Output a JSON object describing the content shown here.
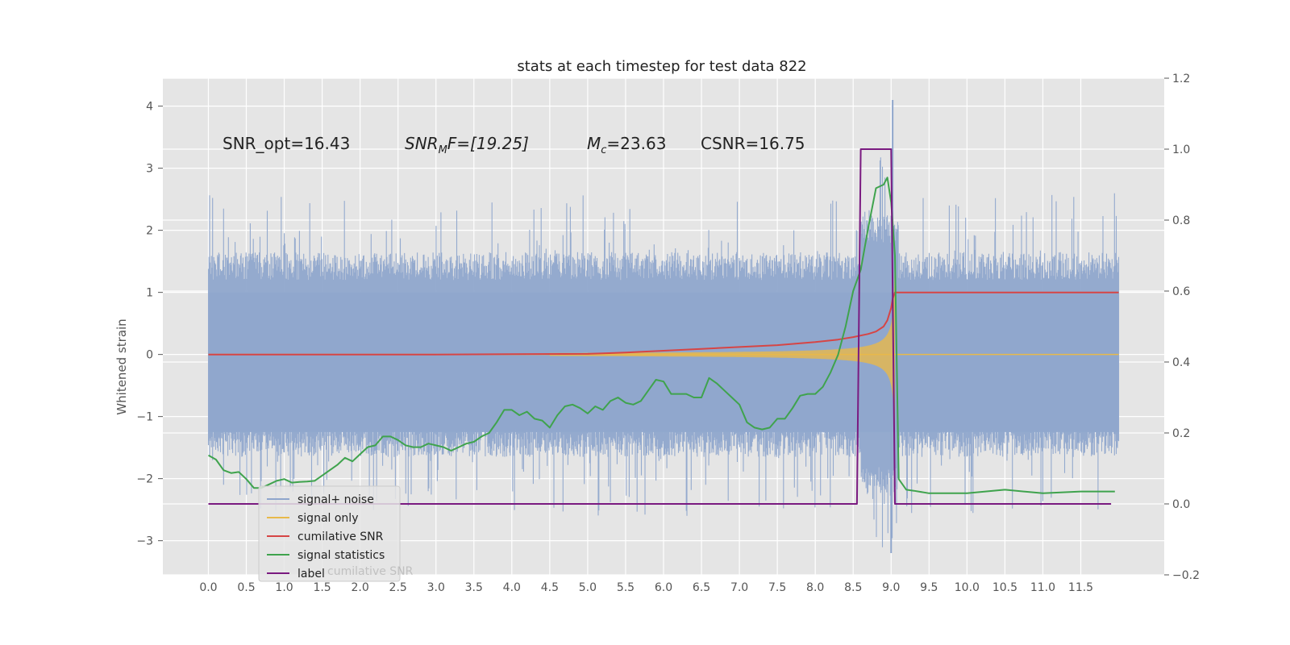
{
  "chart_data": {
    "type": "line",
    "title": "stats at each timestep for test data 822",
    "ylabel": "Whitened strain",
    "xlabel": "",
    "grid": true,
    "legend_position": "bottom-left",
    "xlim": [
      -0.6,
      12.6
    ],
    "ylim": [
      -3.55,
      4.45
    ],
    "y2lim": [
      -0.2,
      1.2
    ],
    "x_ticks": [
      0.0,
      0.5,
      1.0,
      1.5,
      2.0,
      2.5,
      3.0,
      3.5,
      4.0,
      4.5,
      5.0,
      5.5,
      6.0,
      6.5,
      7.0,
      7.5,
      8.0,
      8.5,
      9.0,
      9.5,
      10.0,
      10.5,
      11.0,
      11.5
    ],
    "x_tick_labels": [
      "0.0",
      "0.5",
      "1.0",
      "1.5",
      "2.0",
      "2.5",
      "3.0",
      "3.5",
      "4.0",
      "4.5",
      "5.0",
      "5.5",
      "6.0",
      "6.5",
      "7.0",
      "7.5",
      "8.0",
      "8.5",
      "9.0",
      "9.5",
      "10.0",
      "10.5",
      "11.0",
      "11.5"
    ],
    "y_ticks": [
      -3,
      -2,
      -1,
      0,
      1,
      2,
      3,
      4
    ],
    "y_tick_labels": [
      "−3",
      "−2",
      "−1",
      "0",
      "1",
      "2",
      "3",
      "4"
    ],
    "y2_ticks": [
      -0.2,
      0.0,
      0.2,
      0.4,
      0.6,
      0.8,
      1.0,
      1.2
    ],
    "y2_tick_labels": [
      "−0.2",
      "0.0",
      "0.2",
      "0.4",
      "0.6",
      "0.8",
      "1.0",
      "1.2"
    ],
    "annotations": {
      "snr_opt": "SNR_opt=16.43",
      "snr_mf_label": "SNR",
      "snr_mf_sub": "M",
      "snr_mf_rest": "F=[19.25]",
      "mc_label": "M",
      "mc_sub": "c",
      "mc_rest": "=23.63",
      "csnr": "CSNR=16.75"
    },
    "series": [
      {
        "name": "signal+ noise",
        "color": "#8fa6cc",
        "axis": "left",
        "kind": "noise",
        "x_range": [
          0,
          12.0
        ],
        "envelope_base": [
          -1.2,
          1.2
        ],
        "envelope_peaks": [
          -2.6,
          2.6
        ],
        "max": 4.1,
        "min": -3.2
      },
      {
        "name": "signal only",
        "color": "#e8b94a",
        "axis": "left",
        "kind": "chirp",
        "x_range": [
          0,
          12.0
        ],
        "merger_x": 9.0,
        "peak_amplitude": 2.3
      },
      {
        "name": "cumilative SNR",
        "color": "#d64545",
        "axis": "left",
        "x": [
          0.0,
          1.0,
          2.0,
          3.0,
          4.0,
          5.0,
          5.5,
          6.0,
          6.5,
          7.0,
          7.5,
          8.0,
          8.3,
          8.5,
          8.7,
          8.8,
          8.9,
          8.95,
          9.0,
          9.02,
          9.05,
          9.5,
          10.0,
          11.0,
          12.0
        ],
        "y": [
          0.0,
          0.0,
          0.0,
          0.0,
          0.005,
          0.01,
          0.03,
          0.06,
          0.09,
          0.12,
          0.15,
          0.2,
          0.24,
          0.28,
          0.33,
          0.37,
          0.45,
          0.55,
          0.75,
          0.9,
          1.0,
          1.0,
          1.0,
          1.0,
          1.0
        ]
      },
      {
        "name": "signal statistics",
        "color": "#3fa34d",
        "axis": "right",
        "x": [
          0.0,
          0.1,
          0.2,
          0.3,
          0.4,
          0.5,
          0.6,
          0.7,
          0.8,
          0.9,
          1.0,
          1.1,
          1.2,
          1.3,
          1.4,
          1.5,
          1.6,
          1.7,
          1.8,
          1.9,
          2.0,
          2.1,
          2.2,
          2.3,
          2.4,
          2.5,
          2.6,
          2.7,
          2.8,
          2.9,
          3.0,
          3.1,
          3.2,
          3.3,
          3.4,
          3.5,
          3.6,
          3.7,
          3.8,
          3.9,
          4.0,
          4.1,
          4.2,
          4.3,
          4.4,
          4.5,
          4.6,
          4.7,
          4.8,
          4.9,
          5.0,
          5.1,
          5.2,
          5.3,
          5.4,
          5.5,
          5.6,
          5.7,
          5.8,
          5.9,
          6.0,
          6.1,
          6.2,
          6.3,
          6.4,
          6.5,
          6.6,
          6.7,
          6.8,
          6.9,
          7.0,
          7.1,
          7.2,
          7.3,
          7.4,
          7.5,
          7.6,
          7.7,
          7.8,
          7.9,
          8.0,
          8.1,
          8.2,
          8.3,
          8.4,
          8.5,
          8.6,
          8.7,
          8.8,
          8.9,
          8.95,
          9.0,
          9.05,
          9.1,
          9.2,
          9.3,
          9.5,
          10.0,
          10.5,
          11.0,
          11.5,
          11.95
        ],
        "y": [
          0.137,
          0.125,
          0.095,
          0.087,
          0.09,
          0.07,
          0.045,
          0.045,
          0.055,
          0.065,
          0.07,
          0.06,
          0.062,
          0.063,
          0.065,
          0.08,
          0.095,
          0.11,
          0.13,
          0.12,
          0.14,
          0.16,
          0.165,
          0.19,
          0.19,
          0.18,
          0.165,
          0.16,
          0.16,
          0.17,
          0.165,
          0.16,
          0.15,
          0.16,
          0.17,
          0.175,
          0.19,
          0.2,
          0.23,
          0.265,
          0.265,
          0.25,
          0.26,
          0.24,
          0.235,
          0.215,
          0.25,
          0.275,
          0.28,
          0.27,
          0.255,
          0.275,
          0.265,
          0.29,
          0.3,
          0.285,
          0.28,
          0.29,
          0.32,
          0.35,
          0.345,
          0.31,
          0.31,
          0.31,
          0.3,
          0.3,
          0.355,
          0.34,
          0.32,
          0.3,
          0.28,
          0.23,
          0.215,
          0.21,
          0.215,
          0.24,
          0.24,
          0.27,
          0.305,
          0.31,
          0.31,
          0.33,
          0.37,
          0.42,
          0.5,
          0.6,
          0.66,
          0.78,
          0.89,
          0.9,
          0.92,
          0.85,
          0.7,
          0.07,
          0.04,
          0.037,
          0.03,
          0.03,
          0.04,
          0.03,
          0.035,
          0.035
        ]
      },
      {
        "name": "label",
        "color": "#7a1a80",
        "axis": "right",
        "x": [
          0.0,
          8.55,
          8.6,
          9.0,
          9.05,
          11.9
        ],
        "y": [
          0.0,
          0.0,
          1.0,
          1.0,
          0.0,
          0.0
        ]
      }
    ],
    "legend_ghost_text": "cumilative SNR"
  }
}
